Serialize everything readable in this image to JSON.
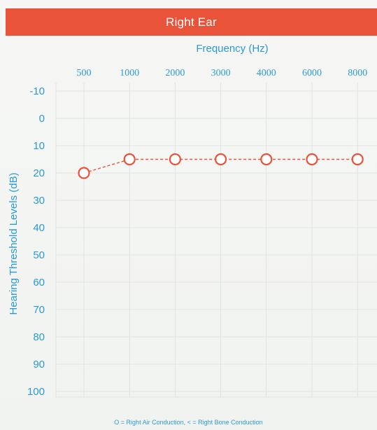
{
  "header": {
    "title": "Right Ear",
    "color": "#e9533a"
  },
  "chart_data": {
    "type": "line",
    "title": "Right Ear",
    "xlabel": "Frequency (Hz)",
    "ylabel": "Hearing Threshold Levels (dB)",
    "categories": [
      "500",
      "1000",
      "2000",
      "3000",
      "4000",
      "6000",
      "8000"
    ],
    "x_axis_position": "top",
    "y_ticks": [
      "-10",
      "0",
      "10",
      "20",
      "30",
      "40",
      "50",
      "60",
      "70",
      "80",
      "90",
      "100"
    ],
    "ylim": [
      -10,
      100
    ],
    "y_inverted": true,
    "grid": true,
    "series": [
      {
        "values": [
          20,
          15,
          15,
          15,
          15,
          15,
          15
        ],
        "marker": "circle",
        "line_style": "dashed",
        "color": "#e9533a"
      }
    ],
    "legend_text": "O = Right Air Conduction, < = Right Bone Conduction",
    "legend_placement": "bottom",
    "axis_color": "#2a9ad4",
    "grid_color": "#dfe3df"
  }
}
